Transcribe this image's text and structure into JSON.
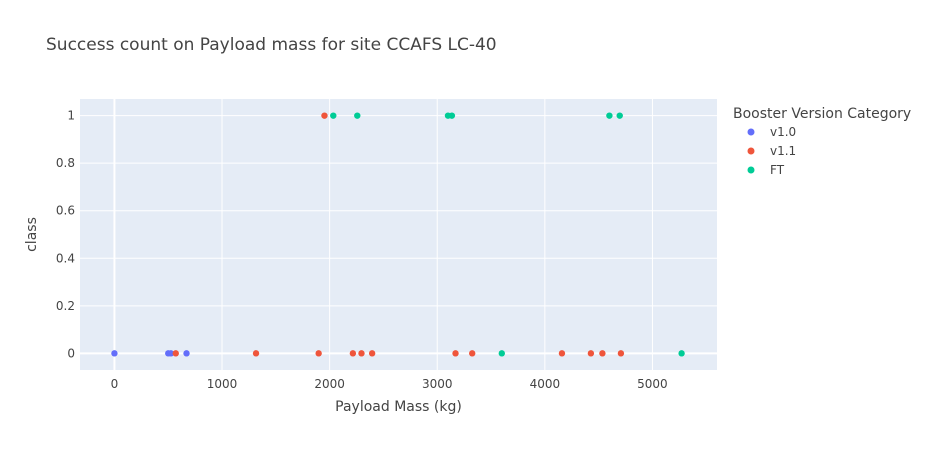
{
  "chart_data": {
    "type": "scatter",
    "title": "Success count on Payload mass for site CCAFS LC-40",
    "xlabel": "Payload Mass (kg)",
    "ylabel": "class",
    "xlim": [
      -320,
      5600
    ],
    "ylim": [
      -0.07,
      1.07
    ],
    "xticks": [
      0,
      1000,
      2000,
      3000,
      4000,
      5000
    ],
    "yticks": [
      0,
      0.2,
      0.4,
      0.6,
      0.8,
      1
    ],
    "xtick_labels": [
      "0",
      "1000",
      "2000",
      "3000",
      "4000",
      "5000"
    ],
    "ytick_labels": [
      "0",
      "0.2",
      "0.4",
      "0.6",
      "0.8",
      "1"
    ],
    "grid": true,
    "legend": {
      "title": "Booster Version Category",
      "placement": "top-right"
    },
    "series": [
      {
        "name": "v1.0",
        "color": "#636efa",
        "x": [
          0,
          500,
          525,
          670
        ],
        "y": [
          0,
          0,
          0,
          0
        ]
      },
      {
        "name": "v1.1",
        "color": "#ef553b",
        "x": [
          1952,
          570,
          1316,
          1898,
          2216,
          2296,
          2395,
          3170,
          3325,
          4159,
          4428,
          4535,
          4707
        ],
        "y": [
          1,
          0,
          0,
          0,
          0,
          0,
          0,
          0,
          0,
          0,
          0,
          0,
          0
        ]
      },
      {
        "name": "FT",
        "color": "#00cc96",
        "x": [
          2034,
          2257,
          3100,
          3136,
          4600,
          4696,
          3600,
          5271
        ],
        "y": [
          1,
          1,
          1,
          1,
          1,
          1,
          0,
          0
        ]
      }
    ]
  }
}
